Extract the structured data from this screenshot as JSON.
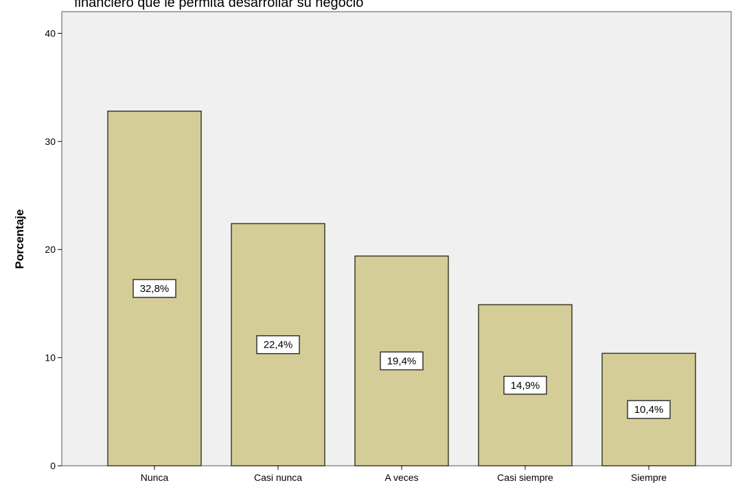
{
  "chart_data": {
    "type": "bar",
    "title": "financiero que le permita desarrollar su negocio",
    "xlabel": "",
    "ylabel": "Porcentaje",
    "categories": [
      "Nunca",
      "Casi nunca",
      "A veces",
      "Casi siempre",
      "Siempre"
    ],
    "values": [
      32.8,
      22.4,
      19.4,
      14.9,
      10.4
    ],
    "data_labels": [
      "32,8%",
      "22,4%",
      "19,4%",
      "14,9%",
      "10,4%"
    ],
    "ylim": [
      0,
      42
    ],
    "yticks": [
      0,
      10,
      20,
      30,
      40
    ],
    "grid": false,
    "legend": "none",
    "colors": {
      "bar_fill": "#d4cd97",
      "bar_stroke": "#3a3a2a",
      "plot_background": "#f0f0f0",
      "plot_border": "#555555"
    }
  }
}
